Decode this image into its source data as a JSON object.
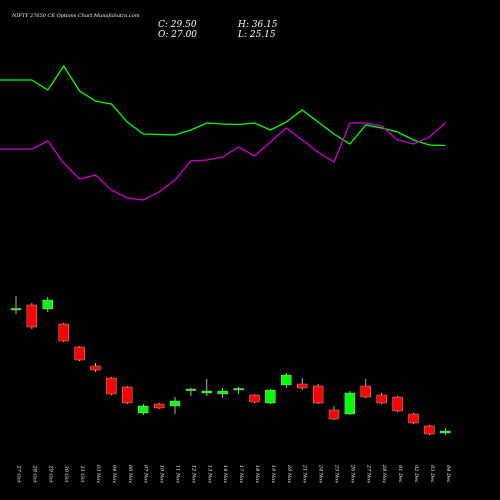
{
  "chart_data": {
    "type": "candlestick",
    "title": "NIFTY 27650 CE Options Chart MunafaSutra.com",
    "ohlc_readout": {
      "close_label": "C: 29.50",
      "high_label": "H: 36.15",
      "open_label": "O: 27.00",
      "low_label": "L: 25.15"
    },
    "colors": {
      "up": "#00ff00",
      "down": "#ff0000",
      "wick": "#ffffff",
      "line_upper": "#00ff00",
      "line_lower": "#cc00cc",
      "background": "#000000"
    },
    "dates": [
      "27 Oct",
      "28 Oct",
      "29 Oct",
      "30 Oct",
      "31 Oct",
      "03 Nov",
      "04 Nov",
      "06 Nov",
      "07 Nov",
      "10 Nov",
      "11 Nov",
      "12 Nov",
      "13 Nov",
      "14 Nov",
      "17 Nov",
      "18 Nov",
      "19 Nov",
      "20 Nov",
      "21 Nov",
      "24 Nov",
      "25 Nov",
      "26 Nov",
      "27 Nov",
      "28 Nov",
      "01 Dec",
      "02 Dec",
      "03 Dec",
      "04 Dec"
    ],
    "candles": [
      {
        "o": 180.0,
        "h": 194.0,
        "l": 176.0,
        "c": 181.5
      },
      {
        "o": 185.0,
        "h": 187.0,
        "l": 161.0,
        "c": 163.0
      },
      {
        "o": 181.0,
        "h": 193.0,
        "l": 178.0,
        "c": 190.0
      },
      {
        "o": 166.0,
        "h": 167.0,
        "l": 148.0,
        "c": 149.0
      },
      {
        "o": 143.0,
        "h": 144.0,
        "l": 129.0,
        "c": 130.0
      },
      {
        "o": 124.0,
        "h": 127.0,
        "l": 118.0,
        "c": 120.0
      },
      {
        "o": 112.0,
        "h": 113.0,
        "l": 95.0,
        "c": 96.0
      },
      {
        "o": 103.0,
        "h": 104.0,
        "l": 86.0,
        "c": 87.0
      },
      {
        "o": 77.0,
        "h": 86.0,
        "l": 75.0,
        "c": 84.0
      },
      {
        "o": 86.0,
        "h": 87.0,
        "l": 81.0,
        "c": 82.0
      },
      {
        "o": 84.0,
        "h": 93.0,
        "l": 76.0,
        "c": 89.0
      },
      {
        "o": 100.0,
        "h": 102.0,
        "l": 94.0,
        "c": 101.0
      },
      {
        "o": 97.0,
        "h": 111.0,
        "l": 94.0,
        "c": 99.0
      },
      {
        "o": 96.0,
        "h": 102.0,
        "l": 92.0,
        "c": 99.0
      },
      {
        "o": 101.0,
        "h": 103.0,
        "l": 96.0,
        "c": 101.5
      },
      {
        "o": 95.0,
        "h": 96.0,
        "l": 87.0,
        "c": 88.0
      },
      {
        "o": 87.0,
        "h": 101.0,
        "l": 86.0,
        "c": 100.0
      },
      {
        "o": 105.0,
        "h": 117.0,
        "l": 102.0,
        "c": 115.0
      },
      {
        "o": 106.0,
        "h": 112.0,
        "l": 100.0,
        "c": 102.0
      },
      {
        "o": 104.0,
        "h": 106.0,
        "l": 86.0,
        "c": 87.0
      },
      {
        "o": 80.0,
        "h": 84.0,
        "l": 70.0,
        "c": 71.0
      },
      {
        "o": 76.0,
        "h": 99.0,
        "l": 75.0,
        "c": 97.0
      },
      {
        "o": 104.0,
        "h": 111.0,
        "l": 92.0,
        "c": 93.0
      },
      {
        "o": 95.0,
        "h": 97.0,
        "l": 86.0,
        "c": 87.0
      },
      {
        "o": 93.0,
        "h": 94.0,
        "l": 78.0,
        "c": 79.0
      },
      {
        "o": 76.0,
        "h": 77.0,
        "l": 66.0,
        "c": 67.0
      },
      {
        "o": 64.0,
        "h": 65.0,
        "l": 55.0,
        "c": 56.0
      },
      {
        "o": 57.0,
        "h": 62.0,
        "l": 55.0,
        "c": 59.0
      }
    ],
    "upper_line": [
      410,
      410,
      400,
      424,
      399,
      389,
      386,
      368,
      356,
      355.5,
      355,
      360,
      367,
      366,
      365.5,
      367,
      360,
      368,
      380,
      368,
      356,
      346,
      365,
      362,
      358,
      350,
      345,
      344.5
    ],
    "lower_line": [
      341,
      341,
      349,
      327,
      311,
      315,
      300,
      292,
      290,
      298,
      310,
      329,
      330,
      333,
      343,
      334,
      348,
      362,
      350,
      338,
      328,
      367,
      367,
      364,
      350,
      346,
      353,
      367
    ],
    "y_range": [
      40,
      450
    ]
  }
}
